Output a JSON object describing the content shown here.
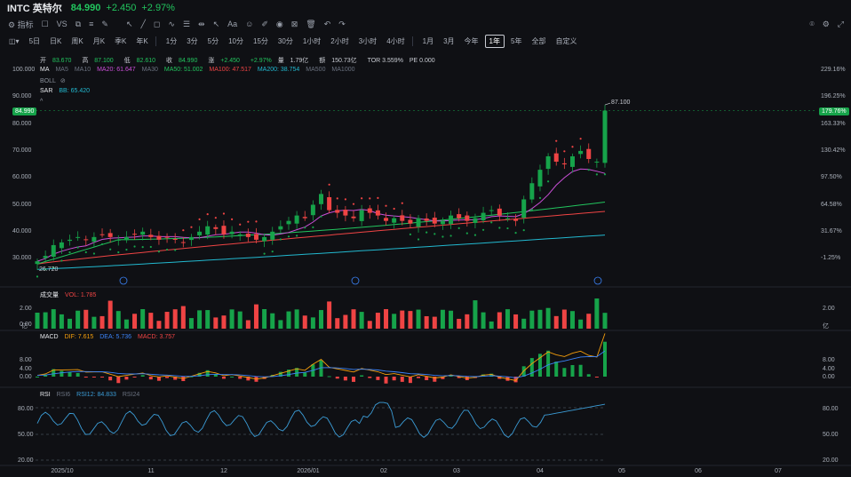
{
  "header": {
    "symbol": "INTC 英特尔",
    "price": "84.990",
    "change": "+2.450",
    "change_pct": "+2.97%"
  },
  "toolbar": {
    "indicator_label": "指标",
    "vs_label": "VS"
  },
  "periods": [
    "5日",
    "日K",
    "周K",
    "月K",
    "季K",
    "年K",
    "1分",
    "3分",
    "5分",
    "10分",
    "15分",
    "30分",
    "1小时",
    "2小时",
    "3小时",
    "4小时",
    "1月",
    "3月",
    "今年",
    "1年",
    "5年",
    "全部",
    "自定义"
  ],
  "active_period": "1年",
  "quote": {
    "open_l": "开",
    "open": "83.670",
    "high_l": "高",
    "high": "87.100",
    "low_l": "低",
    "low": "82.610",
    "close_l": "收",
    "close": "84.990",
    "chg_l": "涨",
    "chg": "+2.450",
    "pct": "+2.97%",
    "vol_l": "量",
    "vol": "1.79亿",
    "amt_l": "额",
    "amt": "150.73亿",
    "tor": "TOR 3.559%",
    "pe": "PE 0.000"
  },
  "ma_legend": {
    "label": "MA",
    "ma5": "MA5",
    "ma10": "MA10",
    "ma20": "MA20: 61.647",
    "ma30": "MA30",
    "ma50": "MA50: 51.002",
    "ma100": "MA100: 47.517",
    "ma200": "MA200: 38.754",
    "ma500": "MA500",
    "ma1000": "MA1000"
  },
  "boll_label": "BOLL",
  "sar_legend": {
    "label": "SAR",
    "value": "BB: 65.420"
  },
  "price_axis": [
    "100.000",
    "90.000",
    "80.000",
    "70.000",
    "60.000",
    "50.000",
    "40.000",
    "30.000"
  ],
  "pct_axis": [
    "229.16%",
    "196.25%",
    "163.33%",
    "130.42%",
    "97.50%",
    "64.58%",
    "31.67%",
    "-1.25%"
  ],
  "current_price_badge": "84.990",
  "current_pct_badge": "179.76%",
  "high_marker": "87.100",
  "low_marker": "26.720",
  "volume": {
    "label": "成交量",
    "vol": "VOL: 1.785",
    "axis": [
      "2.00",
      "0.00"
    ],
    "unit": "亿"
  },
  "macd": {
    "label": "MACD",
    "dif": "DIF: 7.615",
    "dea": "DEA: 5.736",
    "macd": "MACD: 3.757",
    "axis": [
      "8.00",
      "4.00",
      "0.00"
    ]
  },
  "rsi": {
    "label": "RSI",
    "rsi6": "RSI6",
    "rsi12": "RSI12: 84.833",
    "rsi24": "RSI24",
    "axis": [
      "80.00",
      "50.00",
      "20.00"
    ]
  },
  "x_axis": [
    "2025/10",
    "11",
    "12",
    "2026/01",
    "02",
    "03",
    "04",
    "05",
    "06",
    "07"
  ],
  "colors": {
    "up": "#16a34a",
    "down": "#ef4444",
    "ma20": "#c94fd6",
    "ma50": "#22c55e",
    "ma100": "#ef4444",
    "ma200": "#22b8cf",
    "sar": "#ef4444",
    "dif": "#f59e0b",
    "dea": "#3b82f6",
    "rsi": "#3b9cd6"
  },
  "chart_data": {
    "type": "line",
    "title": "INTC 英特尔",
    "ylim": [
      22,
      103
    ],
    "x_range": [
      "2025/10",
      "2026/07"
    ],
    "closes_approx": [
      29,
      31,
      35,
      36,
      37,
      38,
      37,
      38,
      39,
      38,
      37,
      38,
      39,
      40,
      38,
      37,
      38,
      37,
      36,
      38,
      40,
      42,
      41,
      39,
      40,
      39,
      38,
      37,
      38,
      40,
      42,
      44,
      46,
      45,
      50,
      54,
      48,
      47,
      46,
      45,
      48,
      47,
      46,
      44,
      45,
      44,
      43,
      45,
      44,
      43,
      44,
      46,
      45,
      44,
      45,
      47,
      48,
      46,
      45,
      44,
      52,
      58,
      63,
      68,
      66,
      65,
      68,
      70,
      67,
      66,
      84.99
    ],
    "series": [
      {
        "name": "MA20",
        "last": 61.647
      },
      {
        "name": "MA50",
        "last": 51.002
      },
      {
        "name": "MA100",
        "last": 47.517
      },
      {
        "name": "MA200",
        "last": 38.754
      }
    ],
    "high": 87.1,
    "low": 26.72,
    "last_close": 84.99
  }
}
